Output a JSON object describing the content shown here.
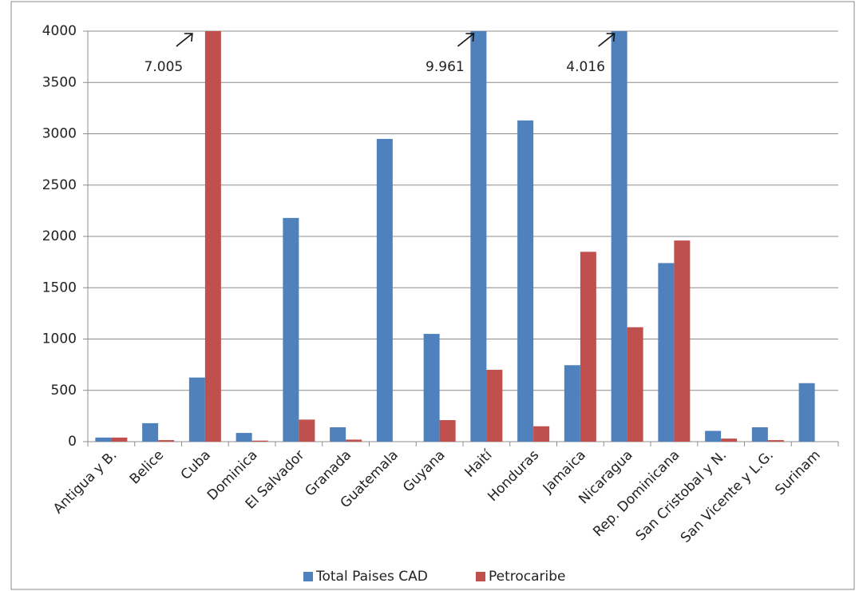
{
  "chart_data": {
    "type": "bar",
    "categories": [
      "Antigua y B.",
      "Belice",
      "Cuba",
      "Dominica",
      "El Salvador",
      "Granada",
      "Guatemala",
      "Guyana",
      "Haití",
      "Honduras",
      "Jamaica",
      "Nicaragua",
      "Rep. Dominicana",
      "San Cristobal y N.",
      "San Vicente y L.G.",
      "Surinam"
    ],
    "series": [
      {
        "name": "Total Paises CAD",
        "color": "#4f81bd",
        "values": [
          40,
          180,
          625,
          85,
          2180,
          140,
          2950,
          1050,
          9961,
          3130,
          745,
          4016,
          1740,
          105,
          140,
          570
        ],
        "value_labels": [
          null,
          null,
          null,
          null,
          null,
          null,
          null,
          null,
          "9.961",
          null,
          null,
          "4.016",
          null,
          null,
          null,
          null
        ]
      },
      {
        "name": "Petrocaribe",
        "color": "#c0504d",
        "values": [
          40,
          15,
          7005,
          10,
          215,
          20,
          null,
          210,
          700,
          150,
          1850,
          1115,
          1960,
          30,
          15,
          null
        ],
        "value_labels": [
          null,
          null,
          "7.005",
          null,
          null,
          null,
          null,
          null,
          null,
          null,
          null,
          null,
          null,
          null,
          null,
          null
        ]
      }
    ],
    "ylim": [
      0,
      4000
    ],
    "yticks": [
      0,
      500,
      1000,
      1500,
      2000,
      2500,
      3000,
      3500,
      4000
    ],
    "grid": true,
    "legend": "bottom"
  }
}
